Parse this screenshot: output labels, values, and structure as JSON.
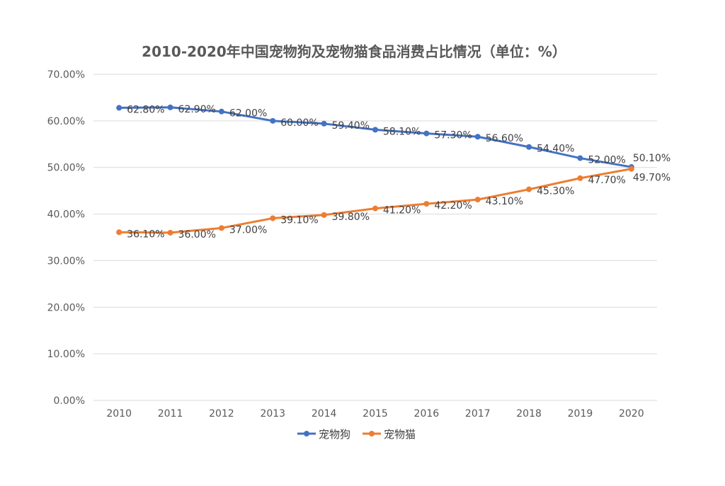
{
  "chart_data": {
    "type": "line",
    "title": "2010-2020年中国宠物狗及宠物猫食品消费占比情况（单位：%）",
    "categories": [
      "2010",
      "2011",
      "2012",
      "2013",
      "2014",
      "2015",
      "2016",
      "2017",
      "2018",
      "2019",
      "2020"
    ],
    "series": [
      {
        "name": "宠物狗",
        "color": "#4472C4",
        "values": [
          62.8,
          62.9,
          62.0,
          60.0,
          59.4,
          58.1,
          57.3,
          56.6,
          54.4,
          52.0,
          50.1
        ],
        "labels": [
          "62.80%",
          "62.90%",
          "62.00%",
          "60.00%",
          "59.40%",
          "58.10%",
          "57.30%",
          "56.60%",
          "54.40%",
          "52.00%",
          "50.10%"
        ]
      },
      {
        "name": "宠物猫",
        "color": "#ED7D31",
        "values": [
          36.1,
          36.0,
          37.0,
          39.1,
          39.8,
          41.2,
          42.2,
          43.1,
          45.3,
          47.7,
          49.7
        ],
        "labels": [
          "36.10%",
          "36.00%",
          "37.00%",
          "39.10%",
          "39.80%",
          "41.20%",
          "42.20%",
          "43.10%",
          "45.30%",
          "47.70%",
          "49.70%"
        ]
      }
    ],
    "y_ticks": [
      "0.00%",
      "10.00%",
      "20.00%",
      "30.00%",
      "40.00%",
      "50.00%",
      "60.00%",
      "70.00%"
    ],
    "ylim": [
      0,
      70
    ],
    "grid": true,
    "legend_position": "bottom"
  }
}
